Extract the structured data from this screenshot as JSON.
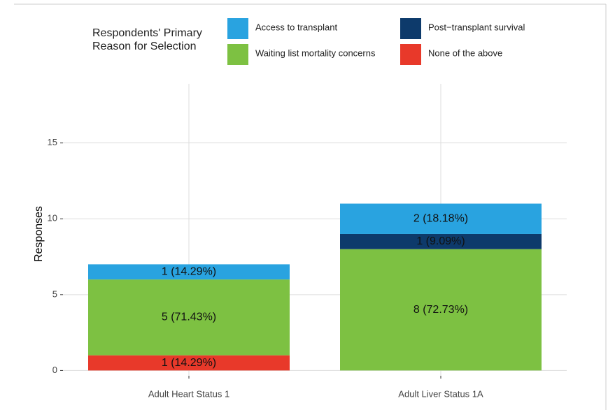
{
  "chart_data": {
    "type": "stacked_bar",
    "legend_title": "Respondents' Primary Reason for Selection",
    "y_label": "Responses",
    "categories": [
      "Adult Heart Status 1",
      "Adult Liver Status 1A"
    ],
    "series": [
      {
        "name": "Access to transplant",
        "color": "#29a3e0",
        "values": [
          1,
          2
        ],
        "value_labels": [
          "1 (14.29%)",
          "2 (18.18%)"
        ]
      },
      {
        "name": "Post−transplant survival",
        "color": "#0d3a6b",
        "values": [
          0,
          1
        ],
        "value_labels": [
          null,
          "1 (9.09%)"
        ]
      },
      {
        "name": "Waiting list mortality concerns",
        "color": "#7dc142",
        "values": [
          5,
          8
        ],
        "value_labels": [
          "5 (71.43%)",
          "8 (72.73%)"
        ]
      },
      {
        "name": "None of the above",
        "color": "#e8392a",
        "values": [
          1,
          0
        ],
        "value_labels": [
          "1 (14.29%)",
          null
        ]
      }
    ],
    "ylim": [
      -0.35,
      18.9
    ],
    "yticks": [
      0,
      5,
      10,
      15
    ],
    "grid": true
  }
}
